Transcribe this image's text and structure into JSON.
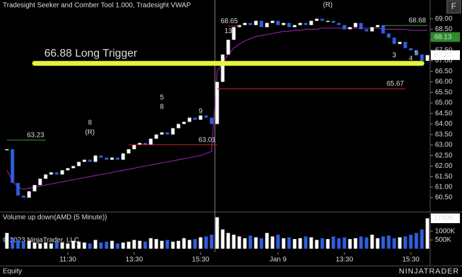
{
  "chart_data": {
    "type": "candlestick",
    "title": "Tradesight Seeker and Comber Tool 1.000, Tradesight VWAP",
    "button": "F",
    "ylim": [
      59.88,
      69.89
    ],
    "yticks": [
      {
        "value": 60.5,
        "label": "60.50"
      },
      {
        "value": 61,
        "label": "61.00"
      },
      {
        "value": 61.5,
        "label": "61.50"
      },
      {
        "value": 62,
        "label": "62.00"
      },
      {
        "value": 62.5,
        "label": "62.50"
      },
      {
        "value": 63,
        "label": "63.00"
      },
      {
        "value": 63.5,
        "label": "63.50"
      },
      {
        "value": 64,
        "label": "64.00"
      },
      {
        "value": 64.5,
        "label": "64.50"
      },
      {
        "value": 65,
        "label": "65.00"
      },
      {
        "value": 65.5,
        "label": "65.50"
      },
      {
        "value": 66,
        "label": "66.00"
      },
      {
        "value": 66.5,
        "label": "66.50"
      },
      {
        "value": 67,
        "label": "67.00"
      },
      {
        "value": 67.5,
        "label": "67.50"
      },
      {
        "value": 68,
        "label": "68.00"
      },
      {
        "value": 68.5,
        "label": "68.50"
      },
      {
        "value": 69,
        "label": "69.00"
      }
    ],
    "xticks": [
      {
        "value": 11,
        "label": "11:30"
      },
      {
        "value": 23,
        "label": "13:30"
      },
      {
        "value": 35,
        "label": "15:30"
      },
      {
        "value": 49,
        "label": "Jan 9"
      },
      {
        "value": 61,
        "label": "13:30"
      },
      {
        "value": 73,
        "label": "15:30"
      }
    ],
    "session_break": 37.6,
    "close": [
      62.8,
      61.2,
      60.6,
      60.5,
      60.8,
      61.1,
      61.4,
      61.6,
      61.7,
      61.6,
      61.8,
      61.9,
      62.0,
      62.2,
      62.3,
      62.2,
      62.5,
      62.4,
      62.3,
      62.4,
      62.3,
      62.6,
      62.8,
      63.0,
      63.1,
      63.0,
      63.3,
      63.5,
      63.6,
      63.5,
      63.8,
      64.0,
      64.1,
      64.3,
      64.2,
      64.4,
      64.3,
      64.0,
      66.0,
      67.3,
      68.0,
      68.6,
      68.7,
      68.8,
      68.7,
      68.9,
      68.6,
      68.8,
      68.9,
      68.7,
      68.8,
      68.6,
      68.7,
      68.8,
      68.7,
      68.9,
      69.0,
      68.9,
      68.9,
      68.8,
      68.7,
      68.5,
      68.6,
      68.8,
      68.5,
      68.4,
      68.6,
      68.7,
      68.3,
      68.1,
      67.8,
      67.9,
      67.6,
      67.5,
      67.3,
      67.0,
      67.27
    ],
    "up_color": "#ffffff",
    "down_color": "#2f5fe0",
    "vwap": {
      "color": "#8a1f9e",
      "values": [
        61.8,
        61.3,
        61.0,
        60.9,
        60.95,
        61.0,
        61.05,
        61.1,
        61.15,
        61.2,
        61.25,
        61.3,
        61.35,
        61.4,
        61.45,
        61.5,
        61.55,
        61.6,
        61.65,
        61.7,
        61.75,
        61.8,
        61.85,
        61.9,
        61.95,
        62.0,
        62.05,
        62.1,
        62.15,
        62.2,
        62.25,
        62.3,
        62.35,
        62.4,
        62.45,
        62.5,
        62.6,
        62.7,
        66.5,
        66.9,
        67.3,
        67.6,
        67.8,
        67.95,
        68.05,
        68.15,
        68.2,
        68.25,
        68.3,
        68.35,
        68.4,
        68.4,
        68.45,
        68.45,
        68.5,
        68.5,
        68.5,
        68.55,
        68.55,
        68.55,
        68.55,
        68.55,
        68.55,
        68.55,
        68.55,
        68.55,
        68.55,
        68.55,
        68.5,
        68.5,
        68.5,
        68.5,
        68.5,
        68.45,
        68.45,
        68.45,
        68.45
      ]
    },
    "levels": [
      {
        "value": 63.23,
        "color": "#3a9a3a",
        "from": 0,
        "to": 7
      },
      {
        "value": 63.01,
        "color": "#c0262b",
        "from": 22,
        "to": 38
      },
      {
        "value": 65.67,
        "color": "#c0262b",
        "from": 38,
        "to": 72
      },
      {
        "value": 68.68,
        "color": "#3a9a3a",
        "from": 68,
        "to": 76
      },
      {
        "value": 68.65,
        "color": "#c0262b",
        "from": 40,
        "to": 42
      }
    ],
    "trigger": {
      "value": 66.88,
      "label": "66.88 Long Trigger",
      "color": "#e6f53a",
      "from": 5,
      "to": 75
    },
    "markers": [
      {
        "value": 68.13,
        "color": "#2e8b2e"
      }
    ],
    "annotations": [
      {
        "text": "(R)",
        "color": "#c13cc1",
        "index": 15,
        "price": 63.6
      },
      {
        "text": "8",
        "color": "#3a9a3a",
        "index": 15,
        "price": 64.05
      },
      {
        "text": "5",
        "color": "#c13cc1",
        "index": 28,
        "price": 65.25
      },
      {
        "text": "8",
        "color": "#3a9a3a",
        "index": 28,
        "price": 64.8
      },
      {
        "text": "9",
        "color": "#c13cc1",
        "index": 35,
        "price": 64.6
      },
      {
        "text": "13",
        "color": "#c13cc1",
        "index": 40,
        "price": 68.4
      },
      {
        "text": "(R)",
        "color": "#c13cc1",
        "index": 58,
        "price": 69.65
      },
      {
        "text": "3",
        "color": "#c13cc1",
        "index": 70,
        "price": 67.25
      },
      {
        "text": "4",
        "color": "#c13cc1",
        "index": 73,
        "price": 67.1
      },
      {
        "text": "5",
        "color": "#c13cc1",
        "index": 74,
        "price": 67.35
      }
    ],
    "volume": {
      "title": "Volume up down(AMD (5 Minute))",
      "ylim": [
        0,
        1900
      ],
      "yticks": [
        {
          "value": 500,
          "label": "500K"
        },
        {
          "value": 1000,
          "label": "1000K"
        }
      ],
      "values": [
        900,
        600,
        500,
        400,
        450,
        350,
        300,
        350,
        300,
        400,
        350,
        300,
        450,
        400,
        350,
        300,
        500,
        350,
        400,
        450,
        300,
        350,
        400,
        500,
        450,
        400,
        600,
        550,
        450,
        500,
        400,
        450,
        600,
        500,
        550,
        650,
        700,
        800,
        1800,
        1100,
        900,
        800,
        700,
        600,
        750,
        650,
        600,
        900,
        700,
        800,
        600,
        650,
        550,
        600,
        700,
        650,
        500,
        600,
        550,
        700,
        600,
        650,
        550,
        600,
        700,
        650,
        800,
        600,
        700,
        750,
        600,
        650,
        700,
        800,
        900,
        1100,
        1740
      ],
      "current_label": "1740K"
    },
    "copyright": "© 2023 NinjaTrader, LLC",
    "footer": "Equity",
    "logo": "NINJATRADER"
  }
}
